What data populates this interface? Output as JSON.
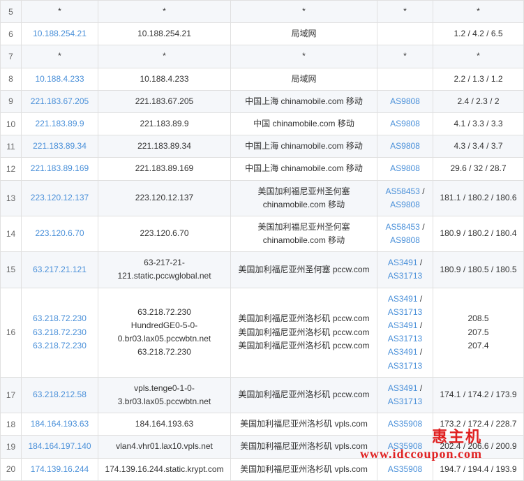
{
  "watermark": {
    "zh": "惠主机",
    "url": "www.idccoupon.com"
  },
  "rows": [
    {
      "hop": "5",
      "cls": "odd",
      "ip": [
        "*"
      ],
      "host": [
        "*"
      ],
      "loc": [
        "*"
      ],
      "as": [
        "*"
      ],
      "rtt": [
        "*"
      ]
    },
    {
      "hop": "6",
      "cls": "even",
      "ip": [
        "10.188.254.21"
      ],
      "host": [
        "10.188.254.21"
      ],
      "loc": [
        "局域网"
      ],
      "as": [
        ""
      ],
      "rtt": [
        "1.2 / 4.2 / 6.5"
      ]
    },
    {
      "hop": "7",
      "cls": "odd",
      "ip": [
        "*"
      ],
      "host": [
        "*"
      ],
      "loc": [
        "*"
      ],
      "as": [
        "*"
      ],
      "rtt": [
        "*"
      ]
    },
    {
      "hop": "8",
      "cls": "even",
      "ip": [
        "10.188.4.233"
      ],
      "host": [
        "10.188.4.233"
      ],
      "loc": [
        "局域网"
      ],
      "as": [
        ""
      ],
      "rtt": [
        "2.2 / 1.3 / 1.2"
      ]
    },
    {
      "hop": "9",
      "cls": "odd",
      "ip": [
        "221.183.67.205"
      ],
      "host": [
        "221.183.67.205"
      ],
      "loc": [
        "中国上海 chinamobile.com 移动"
      ],
      "as": [
        "AS9808"
      ],
      "rtt": [
        "2.4 / 2.3 / 2"
      ]
    },
    {
      "hop": "10",
      "cls": "even",
      "ip": [
        "221.183.89.9"
      ],
      "host": [
        "221.183.89.9"
      ],
      "loc": [
        "中国 chinamobile.com 移动"
      ],
      "as": [
        "AS9808"
      ],
      "rtt": [
        "4.1 / 3.3 / 3.3"
      ]
    },
    {
      "hop": "11",
      "cls": "odd",
      "ip": [
        "221.183.89.34"
      ],
      "host": [
        "221.183.89.34"
      ],
      "loc": [
        "中国上海 chinamobile.com 移动"
      ],
      "as": [
        "AS9808"
      ],
      "rtt": [
        "4.3 / 3.4 / 3.7"
      ]
    },
    {
      "hop": "12",
      "cls": "even",
      "ip": [
        "221.183.89.169"
      ],
      "host": [
        "221.183.89.169"
      ],
      "loc": [
        "中国上海 chinamobile.com 移动"
      ],
      "as": [
        "AS9808"
      ],
      "rtt": [
        "29.6 / 32 / 28.7"
      ]
    },
    {
      "hop": "13",
      "cls": "odd",
      "ip": [
        "223.120.12.137"
      ],
      "host": [
        "223.120.12.137"
      ],
      "loc": [
        "美国加利福尼亚州圣何塞 chinamobile.com 移动"
      ],
      "as": [
        "AS58453 / AS9808"
      ],
      "rtt": [
        "181.1 / 180.2 / 180.6"
      ]
    },
    {
      "hop": "14",
      "cls": "even",
      "ip": [
        "223.120.6.70"
      ],
      "host": [
        "223.120.6.70"
      ],
      "loc": [
        "美国加利福尼亚州圣何塞 chinamobile.com 移动"
      ],
      "as": [
        "AS58453 / AS9808"
      ],
      "rtt": [
        "180.9 / 180.2 / 180.4"
      ]
    },
    {
      "hop": "15",
      "cls": "odd",
      "ip": [
        "63.217.21.121"
      ],
      "host": [
        "63-217-21-121.static.pccwglobal.net"
      ],
      "loc": [
        "美国加利福尼亚州圣何塞 pccw.com"
      ],
      "as": [
        "AS3491 / AS31713"
      ],
      "rtt": [
        "180.9 / 180.5 / 180.5"
      ]
    },
    {
      "hop": "16",
      "cls": "even",
      "ip": [
        "63.218.72.230",
        "63.218.72.230",
        "63.218.72.230"
      ],
      "host": [
        "63.218.72.230",
        "HundredGE0-5-0-0.br03.lax05.pccwbtn.net",
        "63.218.72.230"
      ],
      "loc": [
        "美国加利福尼亚州洛杉矶 pccw.com",
        "美国加利福尼亚州洛杉矶 pccw.com",
        "美国加利福尼亚州洛杉矶 pccw.com"
      ],
      "as": [
        "AS3491 / AS31713",
        "AS3491 / AS31713",
        "AS3491 / AS31713"
      ],
      "rtt": [
        "208.5",
        "207.5",
        "207.4"
      ]
    },
    {
      "hop": "17",
      "cls": "odd",
      "ip": [
        "63.218.212.58"
      ],
      "host": [
        "vpls.tenge0-1-0-3.br03.lax05.pccwbtn.net"
      ],
      "loc": [
        "美国加利福尼亚州洛杉矶 pccw.com"
      ],
      "as": [
        "AS3491 / AS31713"
      ],
      "rtt": [
        "174.1 / 174.2 / 173.9"
      ]
    },
    {
      "hop": "18",
      "cls": "even",
      "ip": [
        "184.164.193.63"
      ],
      "host": [
        "184.164.193.63"
      ],
      "loc": [
        "美国加利福尼亚州洛杉矶 vpls.com"
      ],
      "as": [
        "AS35908"
      ],
      "rtt": [
        "173.2 / 172.4 / 228.7"
      ]
    },
    {
      "hop": "19",
      "cls": "odd",
      "ip": [
        "184.164.197.140"
      ],
      "host": [
        "vlan4.vhr01.lax10.vpls.net"
      ],
      "loc": [
        "美国加利福尼亚州洛杉矶 vpls.com"
      ],
      "as": [
        "AS35908"
      ],
      "rtt": [
        "202.4 / 206.6 / 200.9"
      ]
    },
    {
      "hop": "20",
      "cls": "even",
      "ip": [
        "174.139.16.244"
      ],
      "host": [
        "174.139.16.244.static.krypt.com"
      ],
      "loc": [
        "美国加利福尼亚州洛杉矶 vpls.com"
      ],
      "as": [
        "AS35908"
      ],
      "rtt": [
        "194.7 / 194.4 / 193.9"
      ]
    }
  ]
}
